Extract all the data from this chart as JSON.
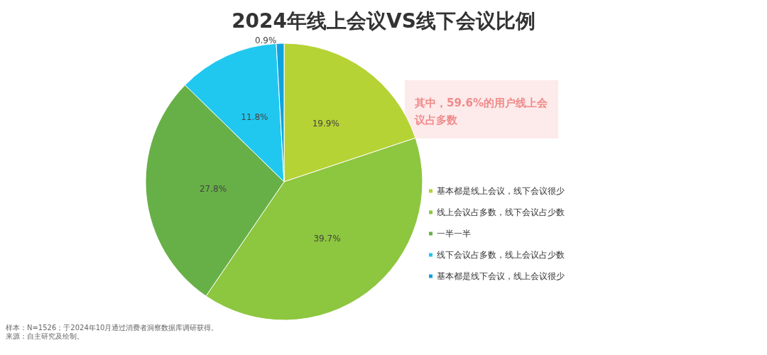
{
  "chart_data": {
    "type": "pie",
    "title": "2024年线上会议VS线下会议比例",
    "categories": [
      "基本都是线上会议，线下会议很少",
      "线上会议占多数，线下会议占少数",
      "一半一半",
      "线下会议占多数，线上会议占少数",
      "基本都是线下会议，线上会议很少"
    ],
    "values": [
      19.9,
      39.7,
      27.8,
      11.8,
      0.9
    ],
    "colors": [
      "#b5d334",
      "#8dc63f",
      "#67b047",
      "#20c8f0",
      "#0fa3de"
    ],
    "value_labels": [
      "19.9%",
      "39.7%",
      "27.8%",
      "11.8%",
      "0.9%"
    ],
    "legend": "right",
    "annotations": [
      "其中，59.6%的用户线上会议占多数",
      "样本：N=1526；于2024年10月通过消费者洞察数据库调研获得。",
      "来源：自主研究及绘制。"
    ]
  }
}
